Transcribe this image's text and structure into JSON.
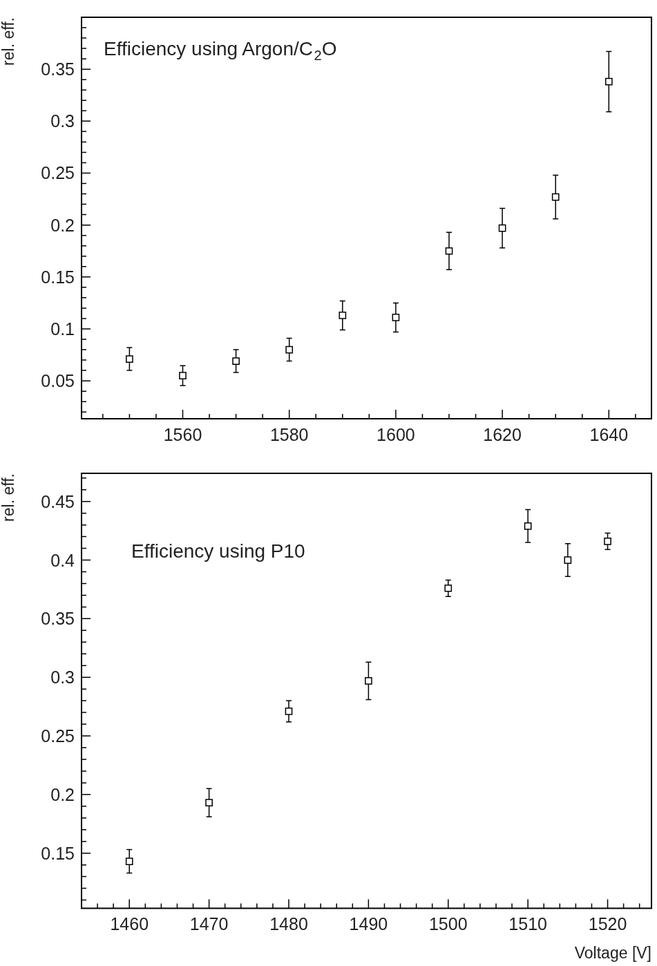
{
  "chart_data": [
    {
      "type": "scatter",
      "ylabel": "rel. eff.",
      "annotations": [
        "Efficiency using Argon/C$_{2}$O"
      ],
      "marker": "square",
      "x": [
        1550,
        1560,
        1570,
        1580,
        1590,
        1600,
        1610,
        1620,
        1630,
        1640
      ],
      "series": [
        {
          "color": "#000000",
          "values": [
            0.071,
            0.055,
            0.069,
            0.08,
            0.113,
            0.111,
            0.175,
            0.197,
            0.227,
            0.338
          ],
          "errors": [
            0.011,
            0.0095,
            0.011,
            0.011,
            0.014,
            0.014,
            0.018,
            0.019,
            0.021,
            0.029
          ]
        }
      ],
      "xlim": [
        1541,
        1648
      ],
      "ylim": [
        0.0135,
        0.4
      ],
      "xticks": [
        {
          "value": 1545,
          "label": null
        },
        {
          "value": 1550,
          "label": null
        },
        {
          "value": 1555,
          "label": null
        },
        1560,
        {
          "value": 1565,
          "label": null
        },
        {
          "value": 1570,
          "label": null
        },
        {
          "value": 1575,
          "label": null
        },
        1580,
        {
          "value": 1585,
          "label": null
        },
        {
          "value": 1590,
          "label": null
        },
        {
          "value": 1595,
          "label": null
        },
        1600,
        {
          "value": 1605,
          "label": null
        },
        {
          "value": 1610,
          "label": null
        },
        {
          "value": 1615,
          "label": null
        },
        1620,
        {
          "value": 1625,
          "label": null
        },
        {
          "value": 1630,
          "label": null
        },
        {
          "value": 1635,
          "label": null
        },
        1640,
        {
          "value": 1645,
          "label": null
        }
      ],
      "yticks": [
        {
          "value": 0.02,
          "label": null
        },
        {
          "value": 0.03,
          "label": null
        },
        {
          "value": 0.04,
          "label": null
        },
        0.05,
        {
          "value": 0.06,
          "label": null
        },
        {
          "value": 0.07,
          "label": null
        },
        {
          "value": 0.08,
          "label": null
        },
        {
          "value": 0.09,
          "label": null
        },
        0.1,
        {
          "value": 0.11,
          "label": null
        },
        {
          "value": 0.12,
          "label": null
        },
        {
          "value": 0.13,
          "label": null
        },
        {
          "value": 0.14,
          "label": null
        },
        0.15,
        {
          "value": 0.16,
          "label": null
        },
        {
          "value": 0.17,
          "label": null
        },
        {
          "value": 0.18,
          "label": null
        },
        {
          "value": 0.19,
          "label": null
        },
        0.2,
        {
          "value": 0.21,
          "label": null
        },
        {
          "value": 0.22,
          "label": null
        },
        {
          "value": 0.23,
          "label": null
        },
        {
          "value": 0.24,
          "label": null
        },
        0.25,
        {
          "value": 0.26,
          "label": null
        },
        {
          "value": 0.27,
          "label": null
        },
        {
          "value": 0.28,
          "label": null
        },
        {
          "value": 0.29,
          "label": null
        },
        0.3,
        {
          "value": 0.31,
          "label": null
        },
        {
          "value": 0.32,
          "label": null
        },
        {
          "value": 0.33,
          "label": null
        },
        {
          "value": 0.34,
          "label": null
        },
        0.35,
        {
          "value": 0.36,
          "label": null
        },
        {
          "value": 0.37,
          "label": null
        },
        {
          "value": 0.38,
          "label": null
        },
        {
          "value": 0.39,
          "label": null
        }
      ]
    },
    {
      "type": "scatter",
      "xlabel": "Voltage [V]",
      "ylabel": "rel. eff.",
      "annotations": [
        "Efficiency using P10"
      ],
      "marker": "square",
      "x": [
        1460,
        1470,
        1480,
        1490,
        1500,
        1510,
        1515,
        1520
      ],
      "series": [
        {
          "color": "#000000",
          "values": [
            0.143,
            0.193,
            0.271,
            0.297,
            0.376,
            0.429,
            0.4,
            0.416
          ],
          "errors": [
            0.01,
            0.012,
            0.009,
            0.016,
            0.007,
            0.014,
            0.014,
            0.007
          ]
        }
      ],
      "xlim": [
        1454,
        1525.5
      ],
      "ylim": [
        0.103,
        0.474
      ],
      "xticks": [
        {
          "value": 1456,
          "label": null
        },
        {
          "value": 1458,
          "label": null
        },
        1460,
        {
          "value": 1462,
          "label": null
        },
        {
          "value": 1464,
          "label": null
        },
        {
          "value": 1466,
          "label": null
        },
        {
          "value": 1468,
          "label": null
        },
        1470,
        {
          "value": 1472,
          "label": null
        },
        {
          "value": 1474,
          "label": null
        },
        {
          "value": 1476,
          "label": null
        },
        {
          "value": 1478,
          "label": null
        },
        1480,
        {
          "value": 1482,
          "label": null
        },
        {
          "value": 1484,
          "label": null
        },
        {
          "value": 1486,
          "label": null
        },
        {
          "value": 1488,
          "label": null
        },
        1490,
        {
          "value": 1492,
          "label": null
        },
        {
          "value": 1494,
          "label": null
        },
        {
          "value": 1496,
          "label": null
        },
        {
          "value": 1498,
          "label": null
        },
        1500,
        {
          "value": 1502,
          "label": null
        },
        {
          "value": 1504,
          "label": null
        },
        {
          "value": 1506,
          "label": null
        },
        {
          "value": 1508,
          "label": null
        },
        1510,
        {
          "value": 1512,
          "label": null
        },
        {
          "value": 1514,
          "label": null
        },
        {
          "value": 1516,
          "label": null
        },
        {
          "value": 1518,
          "label": null
        },
        1520,
        {
          "value": 1522,
          "label": null
        },
        {
          "value": 1524,
          "label": null
        }
      ],
      "yticks": [
        {
          "value": 0.11,
          "label": null
        },
        {
          "value": 0.12,
          "label": null
        },
        {
          "value": 0.13,
          "label": null
        },
        {
          "value": 0.14,
          "label": null
        },
        0.15,
        {
          "value": 0.16,
          "label": null
        },
        {
          "value": 0.17,
          "label": null
        },
        {
          "value": 0.18,
          "label": null
        },
        {
          "value": 0.19,
          "label": null
        },
        0.2,
        {
          "value": 0.21,
          "label": null
        },
        {
          "value": 0.22,
          "label": null
        },
        {
          "value": 0.23,
          "label": null
        },
        {
          "value": 0.24,
          "label": null
        },
        0.25,
        {
          "value": 0.26,
          "label": null
        },
        {
          "value": 0.27,
          "label": null
        },
        {
          "value": 0.28,
          "label": null
        },
        {
          "value": 0.29,
          "label": null
        },
        0.3,
        {
          "value": 0.31,
          "label": null
        },
        {
          "value": 0.32,
          "label": null
        },
        {
          "value": 0.33,
          "label": null
        },
        {
          "value": 0.34,
          "label": null
        },
        0.35,
        {
          "value": 0.36,
          "label": null
        },
        {
          "value": 0.37,
          "label": null
        },
        {
          "value": 0.38,
          "label": null
        },
        {
          "value": 0.39,
          "label": null
        },
        0.4,
        {
          "value": 0.41,
          "label": null
        },
        {
          "value": 0.42,
          "label": null
        },
        {
          "value": 0.43,
          "label": null
        },
        {
          "value": 0.44,
          "label": null
        },
        0.45,
        {
          "value": 0.46,
          "label": null
        },
        {
          "value": 0.47,
          "label": null
        }
      ]
    }
  ]
}
